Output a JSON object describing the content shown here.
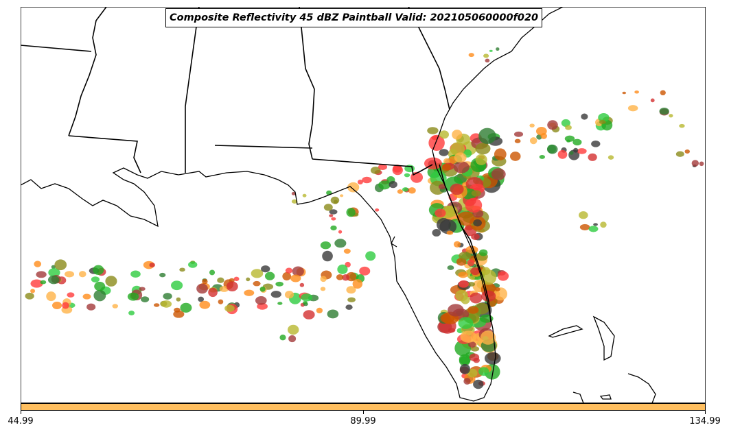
{
  "title": "Composite Reflectivity 45 dBZ Paintball Valid: 202105060000f020",
  "colorbar": {
    "color": "#ffbf5f",
    "ticks": [
      "44.99",
      "89.99",
      "134.99"
    ]
  },
  "member_colors": [
    "#2ecc40",
    "#ff3b3b",
    "#8b8b1a",
    "#ff8c1a",
    "#a33a3a",
    "#3a3a3a",
    "#b8b830",
    "#2e7d32",
    "#ffb347",
    "#d32f2f",
    "#22aa22",
    "#cc5500"
  ]
}
